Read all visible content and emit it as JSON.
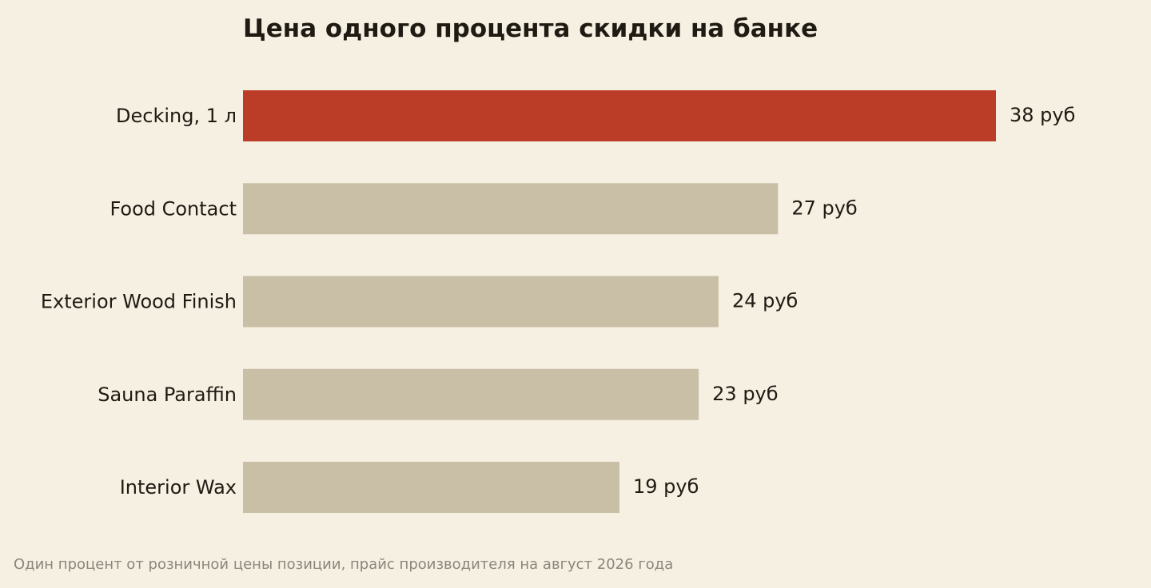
{
  "chart_data": {
    "type": "bar",
    "orientation": "horizontal",
    "title": "Цена одного процента скидки на банке",
    "footnote": "Один процент от розничной цены позиции, прайс производителя на август 2026 года",
    "categories": [
      "Decking, 1 л",
      "Food Contact",
      "Exterior Wood Finish",
      "Sauna Paraffin",
      "Interior Wax"
    ],
    "values": [
      38,
      27,
      24,
      23,
      19
    ],
    "value_labels": [
      "38 руб",
      "27 руб",
      "24 руб",
      "23 руб",
      "19 руб"
    ],
    "unit": "руб",
    "highlight_index": 0,
    "xlim": [
      0,
      38
    ],
    "grid": false,
    "legend": "none",
    "colors": {
      "highlight": "#bc3d27",
      "bar": "#c9bfa6",
      "background": "#f6f0e3",
      "text": "#1f1a12",
      "footnote": "#8b857b"
    }
  }
}
